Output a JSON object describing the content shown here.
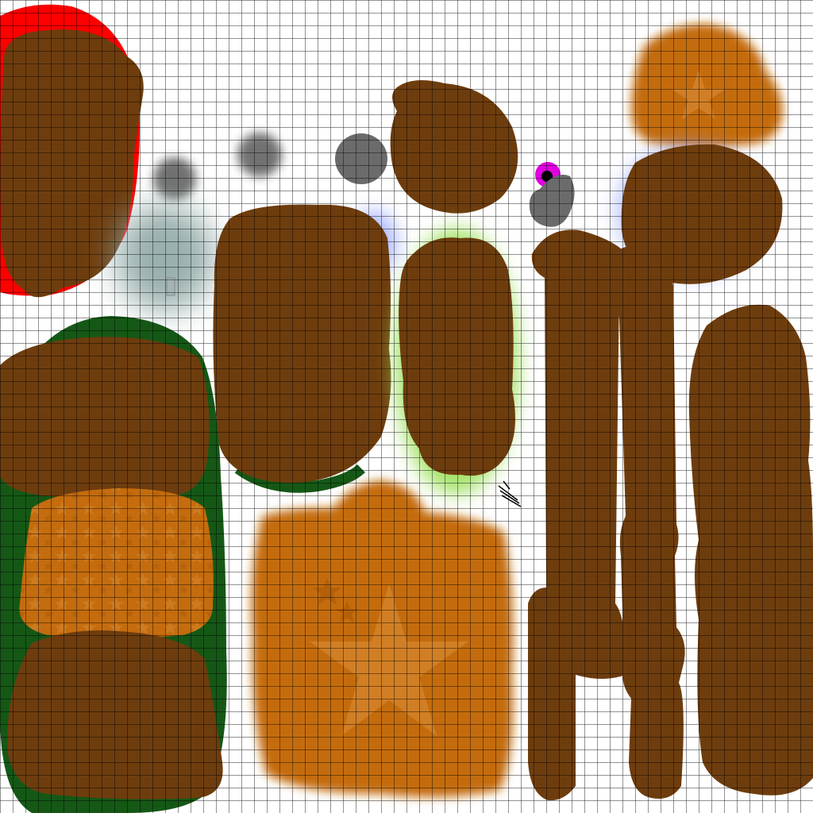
{
  "texture_atlas": {
    "colors": {
      "background": "#ffffff",
      "grid_line": "#000000",
      "brown": "#6e3d0e",
      "orange": "#c46c0e",
      "dark_green": "#155816",
      "red": "#ff0000",
      "gray": "#6b6b6b",
      "teal_glow": "#8fa8a6",
      "green_glow": "#9be05a",
      "blue_glow": "#8a9cff",
      "magenta": "#e000e0",
      "star_tint": "#d3822a"
    },
    "decorations": [
      "star-icon",
      "star-pattern",
      "hatch-mark"
    ]
  }
}
